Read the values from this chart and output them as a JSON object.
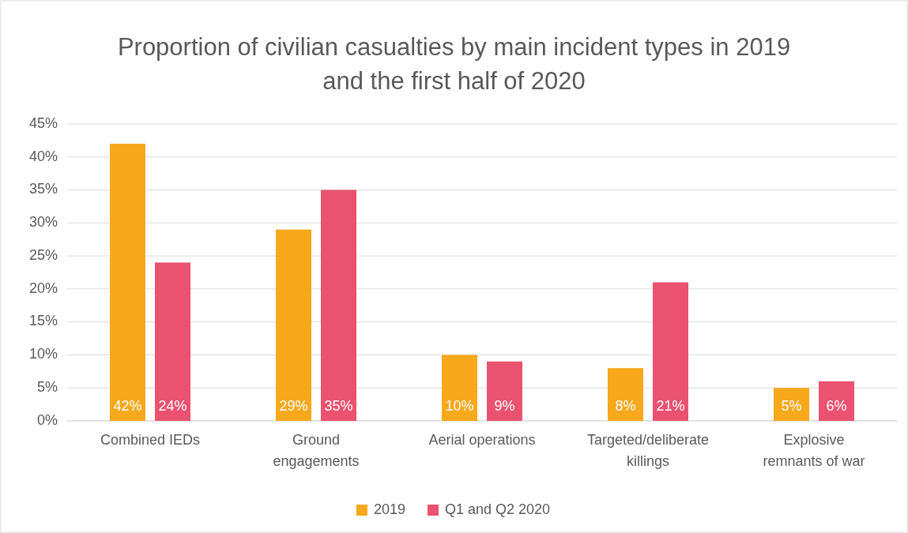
{
  "chart_data": {
    "type": "bar",
    "title": "Proportion of civilian casualties by main incident types in 2019 and the first half of 2020",
    "categories": [
      "Combined IEDs",
      "Ground engagements",
      "Aerial operations",
      "Targeted/deliberate killings",
      "Explosive remnants of war"
    ],
    "series": [
      {
        "name": "2019",
        "color": "#f7a81b",
        "values": [
          42,
          29,
          10,
          8,
          5
        ],
        "value_labels": [
          "42%",
          "29%",
          "10%",
          "8%",
          "5%"
        ]
      },
      {
        "name": "Q1 and Q2 2020",
        "color": "#ea5270",
        "values": [
          24,
          35,
          9,
          21,
          6
        ],
        "value_labels": [
          "24%",
          "35%",
          "9%",
          "21%",
          "6%"
        ]
      }
    ],
    "ylim": [
      0,
      45
    ],
    "yticks": [
      {
        "value": 0,
        "label": "0%"
      },
      {
        "value": 5,
        "label": "5%"
      },
      {
        "value": 10,
        "label": "10%"
      },
      {
        "value": 15,
        "label": "15%"
      },
      {
        "value": 20,
        "label": "20%"
      },
      {
        "value": 25,
        "label": "25%"
      },
      {
        "value": 30,
        "label": "30%"
      },
      {
        "value": 35,
        "label": "35%"
      },
      {
        "value": 40,
        "label": "40%"
      },
      {
        "value": 45,
        "label": "45%"
      }
    ],
    "grid": "y",
    "legend": "bottom"
  }
}
